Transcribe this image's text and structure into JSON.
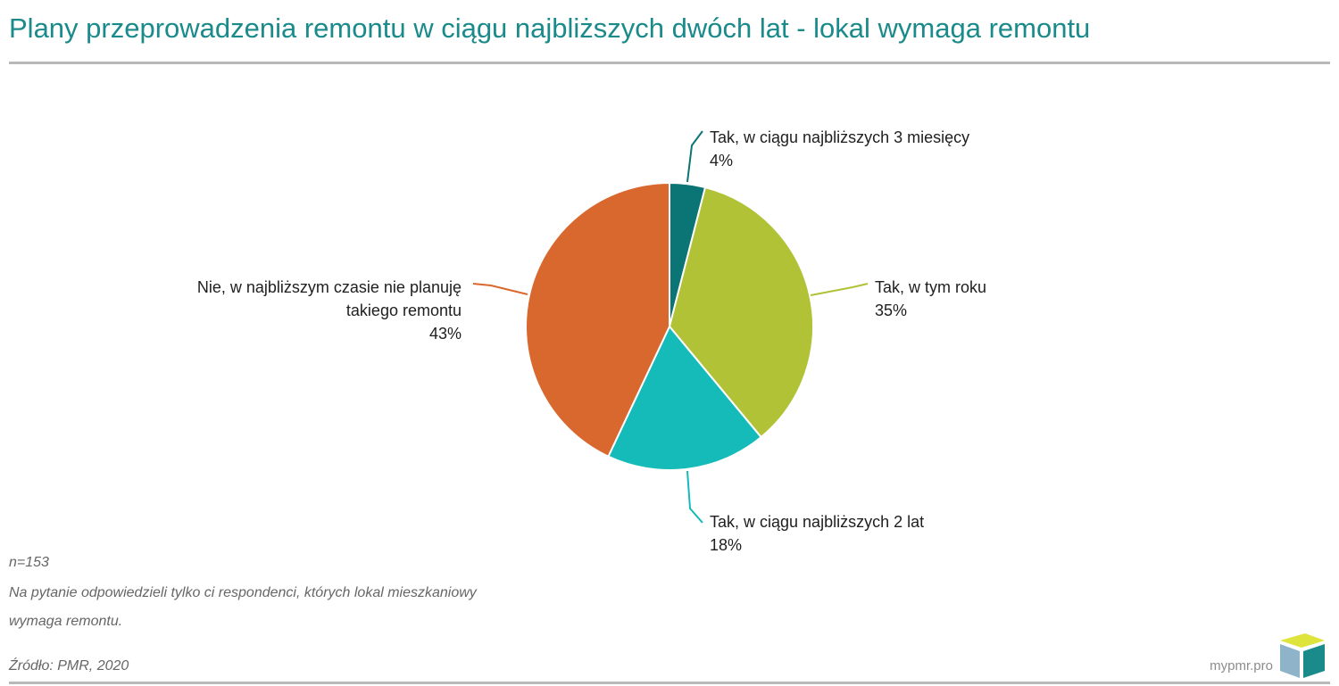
{
  "title": "Plany przeprowadzenia remontu w ciągu najbliższych dwóch lat - lokal wymaga remontu",
  "notes": {
    "n": "n=153",
    "line1": "Na pytanie odpowiedzieli tylko ci respondenci, których lokal mieszkaniowy",
    "line2": "wymaga remontu.",
    "source": "Źródło: PMR, 2020"
  },
  "brand": "mypmr.pro",
  "colors": {
    "title": "#1a8a8a",
    "rule": "#b9b9b9",
    "slices": [
      "#0b7474",
      "#b1c236",
      "#14bbb8",
      "#d9682f"
    ]
  },
  "chart_data": {
    "type": "pie",
    "start": "12 o'clock, clockwise",
    "slices": [
      {
        "label": [
          "Tak, w ciągu najbliższych 3 miesięcy"
        ],
        "value": 4,
        "value_label": "4%",
        "color": "#0b7474"
      },
      {
        "label": [
          "Tak, w tym roku"
        ],
        "value": 35,
        "value_label": "35%",
        "color": "#b1c236"
      },
      {
        "label": [
          "Tak, w ciągu najbliższych 2 lat"
        ],
        "value": 18,
        "value_label": "18%",
        "color": "#14bbb8"
      },
      {
        "label": [
          "Nie, w najbliższym czasie nie planuję",
          "takiego remontu"
        ],
        "value": 43,
        "value_label": "43%",
        "color": "#d9682f"
      }
    ]
  }
}
